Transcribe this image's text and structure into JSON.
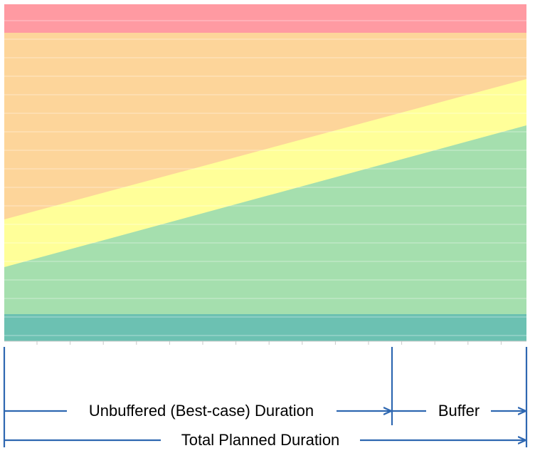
{
  "colors": {
    "red_zone": "#FF9AA2",
    "orange_zone": "#FDD59A",
    "yellow_zone": "#FFFF99",
    "green_zone": "#A5DFAE",
    "teal_zone": "#6CC1B2",
    "annotation": "#2E67B1",
    "gridline": "#FFFFFF"
  },
  "zones": [
    {
      "name": "red",
      "color_key": "red_zone"
    },
    {
      "name": "orange",
      "color_key": "orange_zone"
    },
    {
      "name": "yellow",
      "color_key": "yellow_zone"
    },
    {
      "name": "green",
      "color_key": "green_zone"
    },
    {
      "name": "teal",
      "color_key": "teal_zone"
    }
  ],
  "labels": {
    "unbuffered": "Unbuffered (Best-case) Duration",
    "buffer": "Buffer",
    "total": "Total Planned Duration"
  },
  "duration_split": {
    "unbuffered_fraction": 0.74,
    "buffer_fraction": 0.26
  }
}
